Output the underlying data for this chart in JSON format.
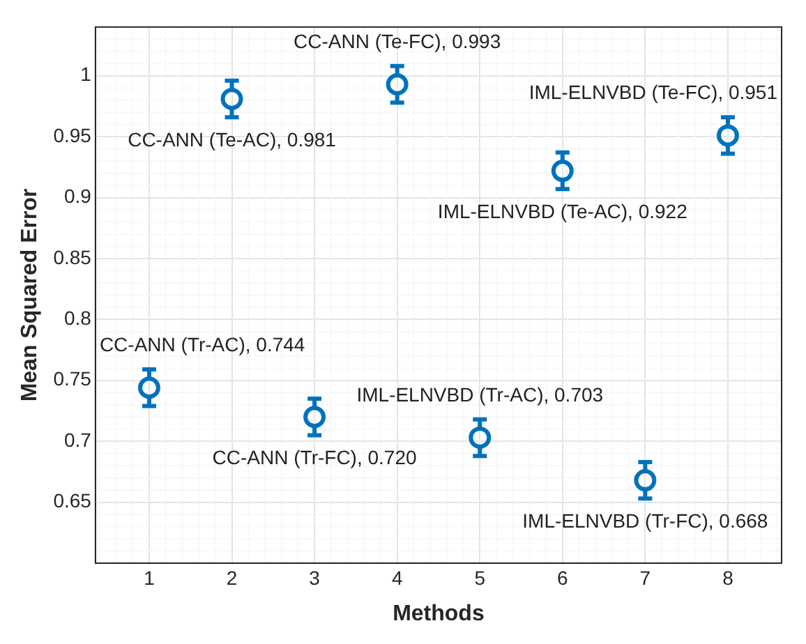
{
  "chart_data": {
    "type": "scatter",
    "xlabel": "Methods",
    "ylabel": "Mean Squared Error",
    "x": [
      1,
      2,
      3,
      4,
      5,
      6,
      7,
      8
    ],
    "series": [
      {
        "color": "#0072bd",
        "values": [
          0.744,
          0.981,
          0.72,
          0.993,
          0.703,
          0.922,
          0.668,
          0.951
        ],
        "errors": [
          0.015,
          0.015,
          0.015,
          0.015,
          0.015,
          0.015,
          0.015,
          0.015
        ]
      }
    ],
    "xlim": [
      0.35,
      8.65
    ],
    "xticks": [
      1,
      2,
      3,
      4,
      5,
      6,
      7,
      8
    ],
    "ylim": [
      0.6,
      1.04
    ],
    "yticks": [
      0.65,
      0.7,
      0.75,
      0.8,
      0.85,
      0.9,
      0.95,
      1
    ],
    "grid": true,
    "legend": false,
    "marker": "circle",
    "annotations": [
      {
        "text": "CC-ANN (Tr-AC), 0.744",
        "x": 1,
        "y": 0.744
      },
      {
        "text": "CC-ANN (Te-AC), 0.981",
        "x": 2,
        "y": 0.981
      },
      {
        "text": "CC-ANN (Tr-FC), 0.720",
        "x": 3,
        "y": 0.72
      },
      {
        "text": "CC-ANN (Te-FC), 0.993",
        "x": 4,
        "y": 0.993
      },
      {
        "text": "IML-ELNVBD (Tr-AC), 0.703",
        "x": 5,
        "y": 0.703
      },
      {
        "text": "IML-ELNVBD (Te-AC), 0.922",
        "x": 6,
        "y": 0.922
      },
      {
        "text": "IML-ELNVBD (Tr-FC), 0.668",
        "x": 7,
        "y": 0.668
      },
      {
        "text": "IML-ELNVBD (Te-FC), 0.951",
        "x": 8,
        "y": 0.951
      }
    ]
  }
}
